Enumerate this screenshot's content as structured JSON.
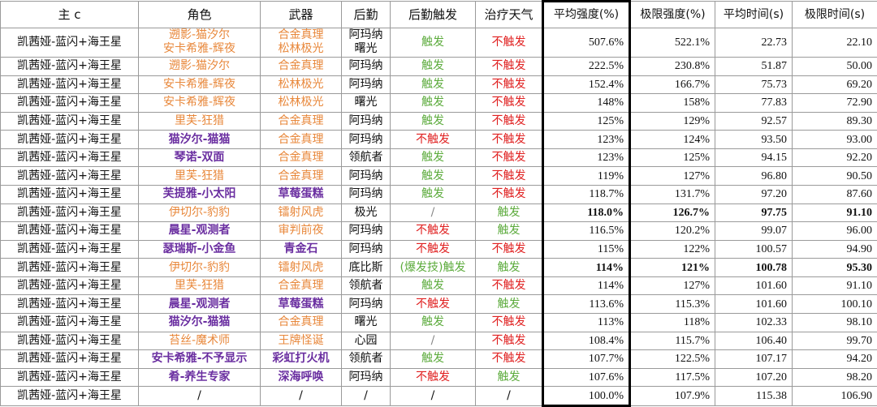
{
  "table": {
    "header": [
      "主 c",
      "角色",
      "武器",
      "后勤",
      "后勤触发",
      "治疗天气",
      "平均强度(%)",
      "极限强度(%)",
      "平均时间(s)",
      "极限时间(s)"
    ],
    "rows": [
      [
        "凯茜娅-蓝闪+海王星",
        "遡影-猫汐尔\n安卡希雅-辉夜",
        "合金真理\n松林极光",
        "阿玛纳\n曙光",
        "触发",
        "不触发",
        "507.6%",
        "522.1%",
        "22.73",
        "22.10"
      ],
      [
        "凯茜娅-蓝闪+海王星",
        "遡影-猫汐尔",
        "合金真理",
        "阿玛纳",
        "触发",
        "不触发",
        "222.5%",
        "230.8%",
        "51.87",
        "50.00"
      ],
      [
        "凯茜娅-蓝闪+海王星",
        "安卡希雅-辉夜",
        "松林极光",
        "阿玛纳",
        "触发",
        "不触发",
        "152.4%",
        "166.7%",
        "75.73",
        "69.20"
      ],
      [
        "凯茜娅-蓝闪+海王星",
        "安卡希雅-辉夜",
        "松林极光",
        "曙光",
        "触发",
        "不触发",
        "148%",
        "158%",
        "77.83",
        "72.90"
      ],
      [
        "凯茜娅-蓝闪+海王星",
        "里芙-狂猎",
        "合金真理",
        "阿玛纳",
        "触发",
        "不触发",
        "125%",
        "129%",
        "92.57",
        "89.30"
      ],
      [
        "凯茜娅-蓝闪+海王星",
        "猫汐尔-猫猫",
        "合金真理",
        "阿玛纳",
        "不触发",
        "不触发",
        "123%",
        "124%",
        "93.50",
        "93.00"
      ],
      [
        "凯茜娅-蓝闪+海王星",
        "琴诺-双面",
        "合金真理",
        "领航者",
        "触发",
        "不触发",
        "123%",
        "125%",
        "94.15",
        "92.20"
      ],
      [
        "凯茜娅-蓝闪+海王星",
        "里芙-狂猎",
        "合金真理",
        "阿玛纳",
        "触发",
        "不触发",
        "119%",
        "127%",
        "96.80",
        "90.50"
      ],
      [
        "凯茜娅-蓝闪+海王星",
        "芙提雅-小太阳",
        "草莓蛋糕",
        "阿玛纳",
        "触发",
        "不触发",
        "118.7%",
        "131.7%",
        "97.20",
        "87.60"
      ],
      [
        "凯茜娅-蓝闪+海王星",
        "伊切尔-豹豹",
        "镭射风虎",
        "极光",
        "/",
        "触发",
        "118.0%",
        "126.7%",
        "97.75",
        "91.10"
      ],
      [
        "凯茜娅-蓝闪+海王星",
        "晨星-观测者",
        "审判前夜",
        "阿玛纳",
        "不触发",
        "触发",
        "116.5%",
        "120.2%",
        "99.07",
        "96.00"
      ],
      [
        "凯茜娅-蓝闪+海王星",
        "瑟瑞斯-小金鱼",
        "青金石",
        "阿玛纳",
        "不触发",
        "不触发",
        "115%",
        "122%",
        "100.57",
        "94.90"
      ],
      [
        "凯茜娅-蓝闪+海王星",
        "伊切尔-豹豹",
        "镭射风虎",
        "底比斯",
        "(爆发技)触发",
        "触发",
        "114%",
        "121%",
        "100.78",
        "95.30"
      ],
      [
        "凯茜娅-蓝闪+海王星",
        "里芙-狂猎",
        "合金真理",
        "领航者",
        "触发",
        "不触发",
        "114%",
        "127%",
        "101.60",
        "91.10"
      ],
      [
        "凯茜娅-蓝闪+海王星",
        "晨星-观测者",
        "草莓蛋糕",
        "阿玛纳",
        "不触发",
        "触发",
        "113.6%",
        "115.3%",
        "101.60",
        "100.10"
      ],
      [
        "凯茜娅-蓝闪+海王星",
        "猫汐尔-猫猫",
        "合金真理",
        "曙光",
        "触发",
        "不触发",
        "113%",
        "118%",
        "102.33",
        "98.10"
      ],
      [
        "凯茜娅-蓝闪+海王星",
        "苔丝-魔术师",
        "王牌怪诞",
        "心园",
        "/",
        "不触发",
        "108.4%",
        "115.7%",
        "106.40",
        "99.70"
      ],
      [
        "凯茜娅-蓝闪+海王星",
        "安卡希雅-不予显示",
        "彩虹打火机",
        "领航者",
        "触发",
        "不触发",
        "107.7%",
        "122.5%",
        "107.17",
        "94.20"
      ],
      [
        "凯茜娅-蓝闪+海王星",
        "肴-养生专家",
        "深海呼唤",
        "阿玛纳",
        "不触发",
        "触发",
        "107.6%",
        "117.5%",
        "107.20",
        "98.20"
      ],
      [
        "凯茜娅-蓝闪+海王星",
        "/",
        "/",
        "/",
        "/",
        "/",
        "100.0%",
        "107.9%",
        "115.38",
        "106.90"
      ]
    ]
  }
}
